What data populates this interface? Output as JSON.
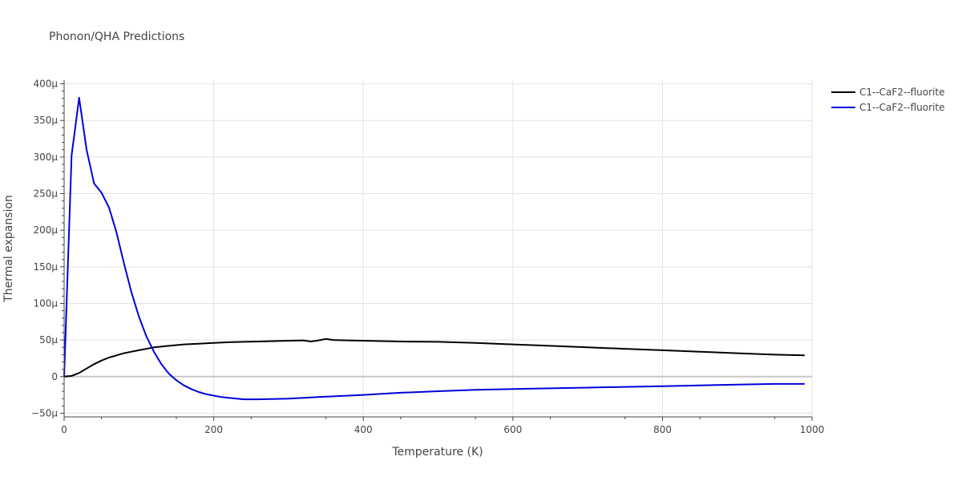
{
  "chart_data": {
    "type": "line",
    "title": "Phonon/QHA Predictions",
    "xlabel": "Temperature (K)",
    "ylabel": "Thermal expansion",
    "xlim": [
      0,
      1000
    ],
    "ylim": [
      -55,
      405
    ],
    "x_ticks": [
      0,
      200,
      400,
      600,
      800,
      1000
    ],
    "x_tick_labels": [
      "0",
      "200",
      "400",
      "600",
      "800",
      "1000"
    ],
    "y_ticks": [
      -50,
      0,
      50,
      100,
      150,
      200,
      250,
      300,
      350,
      400
    ],
    "y_tick_labels": [
      "−50μ",
      "0",
      "50μ",
      "100μ",
      "150μ",
      "200μ",
      "250μ",
      "300μ",
      "350μ",
      "400μ"
    ],
    "grid": true,
    "legend_position": "top-right",
    "series": [
      {
        "name": "C1--CaF2--fluorite",
        "color": "#000000",
        "x": [
          0,
          10,
          20,
          30,
          40,
          50,
          60,
          70,
          80,
          90,
          100,
          120,
          140,
          160,
          180,
          200,
          220,
          240,
          260,
          280,
          300,
          320,
          330,
          340,
          350,
          360,
          380,
          400,
          450,
          500,
          550,
          600,
          650,
          700,
          750,
          800,
          850,
          900,
          950,
          990
        ],
        "y": [
          0,
          1,
          5,
          11,
          17,
          22,
          26,
          29,
          32,
          34,
          36,
          40,
          42,
          44,
          45,
          46,
          47,
          47.5,
          48,
          48.5,
          49,
          49.5,
          48,
          49.5,
          51.5,
          50,
          49.5,
          49,
          48,
          47.5,
          46,
          44,
          42,
          40,
          38,
          36,
          34,
          32,
          30,
          29
        ]
      },
      {
        "name": "C1--CaF2--fluorite",
        "color": "#0000dd",
        "x": [
          0,
          10,
          20,
          30,
          40,
          50,
          60,
          70,
          80,
          90,
          100,
          110,
          120,
          130,
          140,
          150,
          160,
          170,
          180,
          190,
          200,
          210,
          220,
          240,
          260,
          300,
          340,
          360,
          380,
          400,
          450,
          500,
          550,
          600,
          650,
          700,
          750,
          800,
          850,
          900,
          950,
          990
        ],
        "y": [
          0,
          302,
          381,
          310,
          264,
          251,
          231,
          197,
          155,
          115,
          82,
          55,
          34,
          17,
          4,
          -5,
          -12,
          -17,
          -21,
          -24,
          -26,
          -28,
          -29,
          -31,
          -31,
          -30,
          -28,
          -27,
          -26,
          -25,
          -22,
          -20,
          -18,
          -17,
          -16,
          -15,
          -14,
          -13,
          -12,
          -11,
          -10,
          -10
        ]
      }
    ]
  }
}
